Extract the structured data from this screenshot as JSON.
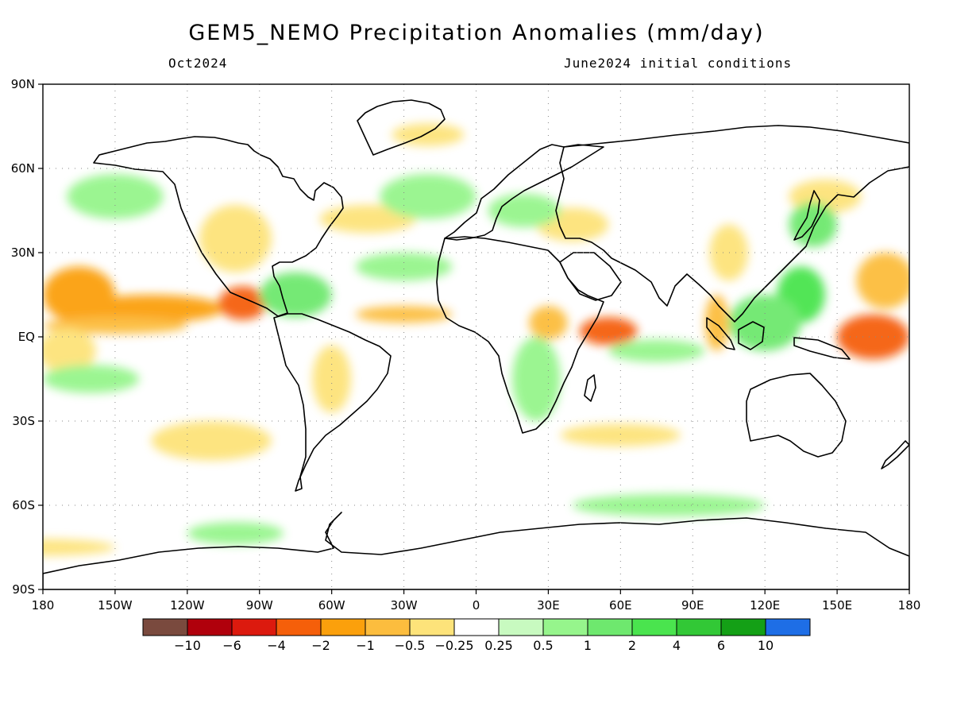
{
  "title": "GEM5_NEMO Precipitation Anomalies (mm/day)",
  "subtitle_left": "Oct2024",
  "subtitle_right": "June2024 initial conditions",
  "lat_labels": [
    "90N",
    "60N",
    "30N",
    "EQ",
    "30S",
    "60S",
    "90S"
  ],
  "lat_values": [
    90,
    60,
    30,
    0,
    -30,
    -60,
    -90
  ],
  "lon_labels": [
    "180",
    "150W",
    "120W",
    "90W",
    "60W",
    "30W",
    "0",
    "30E",
    "60E",
    "90E",
    "120E",
    "150E",
    "180"
  ],
  "lon_values": [
    -180,
    -150,
    -120,
    -90,
    -60,
    -30,
    0,
    30,
    60,
    90,
    120,
    150,
    180
  ],
  "colorbar": {
    "colors": [
      "#7a4a3e",
      "#b0000c",
      "#dc1a0e",
      "#f55f0a",
      "#fba00c",
      "#fcbd3e",
      "#fde37a",
      "#ffffff",
      "#c8fac0",
      "#96f58c",
      "#6ee86e",
      "#4ae44e",
      "#32c836",
      "#14a016",
      "#1e6ee6"
    ],
    "labels": [
      "−10",
      "−6",
      "−4",
      "−2",
      "−1",
      "−0.5",
      "−0.25",
      "0.25",
      "0.5",
      "1",
      "2",
      "4",
      "6",
      "10"
    ]
  },
  "anomalies": [
    {
      "lon": -165,
      "lat": 15,
      "rx": 15,
      "ry": 10,
      "level": -2
    },
    {
      "lon": -135,
      "lat": 10,
      "rx": 30,
      "ry": 5,
      "level": -2
    },
    {
      "lon": -97,
      "lat": 12,
      "rx": 10,
      "ry": 6,
      "level": -4
    },
    {
      "lon": -150,
      "lat": 4,
      "rx": 30,
      "ry": 3,
      "level": -1
    },
    {
      "lon": -170,
      "lat": -5,
      "rx": 12,
      "ry": 8,
      "level": -0.5
    },
    {
      "lon": -100,
      "lat": 35,
      "rx": 15,
      "ry": 12,
      "level": -0.5
    },
    {
      "lon": -45,
      "lat": 42,
      "rx": 20,
      "ry": 5,
      "level": -0.5
    },
    {
      "lon": -30,
      "lat": 8,
      "rx": 20,
      "ry": 3,
      "level": -1
    },
    {
      "lon": -60,
      "lat": -15,
      "rx": 8,
      "ry": 12,
      "level": -0.5
    },
    {
      "lon": -110,
      "lat": -37,
      "rx": 25,
      "ry": 7,
      "level": -0.5
    },
    {
      "lon": 55,
      "lat": 2,
      "rx": 12,
      "ry": 5,
      "level": -4
    },
    {
      "lon": 30,
      "lat": 5,
      "rx": 8,
      "ry": 6,
      "level": -1
    },
    {
      "lon": 100,
      "lat": 5,
      "rx": 5,
      "ry": 10,
      "level": -1
    },
    {
      "lon": 165,
      "lat": 0,
      "rx": 15,
      "ry": 8,
      "level": -4
    },
    {
      "lon": 170,
      "lat": 20,
      "rx": 12,
      "ry": 10,
      "level": -1
    },
    {
      "lon": 105,
      "lat": 30,
      "rx": 8,
      "ry": 10,
      "level": -0.5
    },
    {
      "lon": 145,
      "lat": 50,
      "rx": 15,
      "ry": 6,
      "level": -0.5
    },
    {
      "lon": -20,
      "lat": 72,
      "rx": 15,
      "ry": 4,
      "level": -0.5
    },
    {
      "lon": 40,
      "lat": 40,
      "rx": 15,
      "ry": 6,
      "level": -0.5
    },
    {
      "lon": 60,
      "lat": -35,
      "rx": 25,
      "ry": 4,
      "level": -0.5
    },
    {
      "lon": -180,
      "lat": -75,
      "rx": 30,
      "ry": 3,
      "level": -0.5
    },
    {
      "lon": -75,
      "lat": 15,
      "rx": 15,
      "ry": 8,
      "level": 1
    },
    {
      "lon": 135,
      "lat": 15,
      "rx": 10,
      "ry": 10,
      "level": 2
    },
    {
      "lon": 120,
      "lat": 5,
      "rx": 15,
      "ry": 10,
      "level": 1
    },
    {
      "lon": -160,
      "lat": -15,
      "rx": 20,
      "ry": 5,
      "level": 0.5
    },
    {
      "lon": 75,
      "lat": -5,
      "rx": 20,
      "ry": 4,
      "level": 0.5
    },
    {
      "lon": -20,
      "lat": 50,
      "rx": 20,
      "ry": 8,
      "level": 0.5
    },
    {
      "lon": -30,
      "lat": 25,
      "rx": 20,
      "ry": 5,
      "level": 0.5
    },
    {
      "lon": 20,
      "lat": 45,
      "rx": 15,
      "ry": 6,
      "level": 0.5
    },
    {
      "lon": -150,
      "lat": 50,
      "rx": 20,
      "ry": 8,
      "level": 0.5
    },
    {
      "lon": 140,
      "lat": 40,
      "rx": 10,
      "ry": 8,
      "level": 1
    },
    {
      "lon": -100,
      "lat": -70,
      "rx": 20,
      "ry": 4,
      "level": 0.5
    },
    {
      "lon": 25,
      "lat": -15,
      "rx": 10,
      "ry": 15,
      "level": 0.5
    },
    {
      "lon": 80,
      "lat": -60,
      "rx": 40,
      "ry": 4,
      "level": 0.5
    }
  ]
}
